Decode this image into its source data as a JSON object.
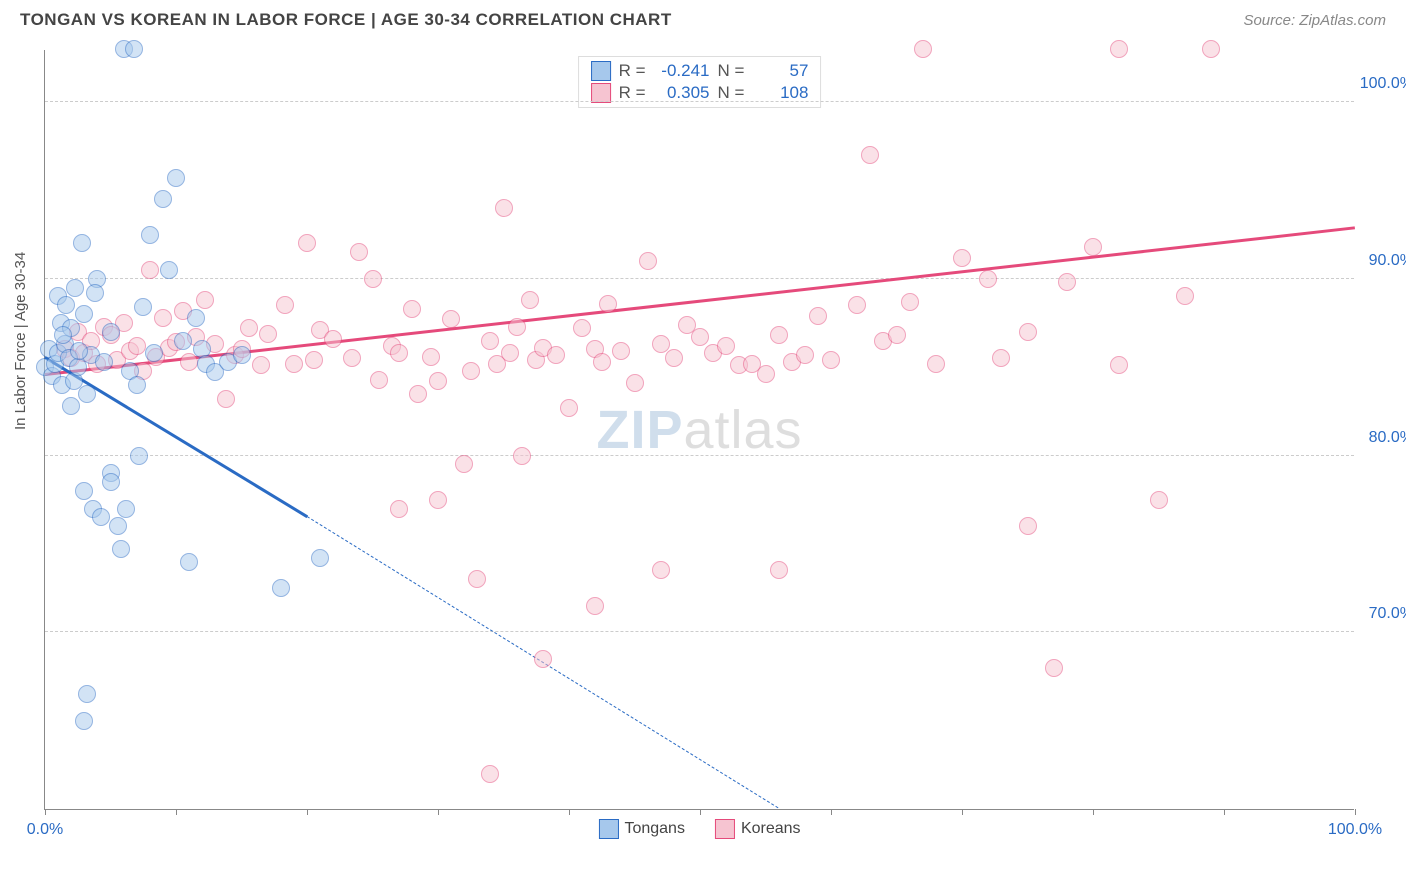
{
  "header": {
    "title": "TONGAN VS KOREAN IN LABOR FORCE | AGE 30-34 CORRELATION CHART",
    "source": "Source: ZipAtlas.com"
  },
  "chart": {
    "type": "scatter",
    "ylabel": "In Labor Force | Age 30-34",
    "xlim": [
      0,
      100
    ],
    "ylim": [
      60,
      103
    ],
    "xtick_positions": [
      0,
      10,
      20,
      30,
      40,
      50,
      60,
      70,
      80,
      90,
      100
    ],
    "xtick_labels": {
      "0": "0.0%",
      "100": "100.0%"
    },
    "ytick_positions": [
      70,
      80,
      90,
      100
    ],
    "ytick_labels": {
      "70": "70.0%",
      "80": "80.0%",
      "90": "90.0%",
      "100": "100.0%"
    },
    "grid_color": "#cccccc",
    "background_color": "#ffffff",
    "axis_color": "#888888",
    "tick_label_color": "#2a6bc4",
    "point_radius": 9,
    "point_opacity": 0.5,
    "series": {
      "tongans": {
        "label": "Tongans",
        "fill_color": "#a6c8ec",
        "stroke_color": "#2a6bc4",
        "R": "-0.241",
        "N": "57",
        "trend": {
          "x1": 0,
          "y1": 85.5,
          "x2": 20,
          "y2": 76.5,
          "x_extrapolate": 56,
          "y_extrapolate": 60,
          "color": "#2a6bc4"
        },
        "points": [
          [
            0,
            85
          ],
          [
            0.3,
            86
          ],
          [
            0.5,
            84.5
          ],
          [
            0.8,
            85.2
          ],
          [
            1,
            85.8
          ],
          [
            1,
            89
          ],
          [
            1.2,
            87.5
          ],
          [
            1.3,
            84
          ],
          [
            1.5,
            86.3
          ],
          [
            1.6,
            88.5
          ],
          [
            1.8,
            85.5
          ],
          [
            2,
            82.8
          ],
          [
            2,
            87.2
          ],
          [
            2.2,
            84.2
          ],
          [
            2.3,
            89.5
          ],
          [
            2.5,
            85
          ],
          [
            2.8,
            92
          ],
          [
            3,
            88
          ],
          [
            3,
            78
          ],
          [
            3.2,
            83.5
          ],
          [
            3.5,
            85.7
          ],
          [
            3.7,
            77
          ],
          [
            4,
            90
          ],
          [
            4.3,
            76.5
          ],
          [
            4.5,
            85.3
          ],
          [
            5,
            87
          ],
          [
            5,
            79
          ],
          [
            5.6,
            76
          ],
          [
            5.8,
            74.7
          ],
          [
            6,
            103
          ],
          [
            6.5,
            84.8
          ],
          [
            6.8,
            103
          ],
          [
            7,
            84
          ],
          [
            7.2,
            80
          ],
          [
            7.5,
            88.4
          ],
          [
            8,
            92.5
          ],
          [
            8.3,
            85.8
          ],
          [
            9,
            94.5
          ],
          [
            9.5,
            90.5
          ],
          [
            10,
            95.7
          ],
          [
            10.5,
            86.5
          ],
          [
            11,
            74
          ],
          [
            11.5,
            87.8
          ],
          [
            12,
            86
          ],
          [
            12.3,
            85.2
          ],
          [
            13,
            84.7
          ],
          [
            14,
            85.3
          ],
          [
            15,
            85.7
          ],
          [
            3.2,
            66.5
          ],
          [
            3,
            65
          ],
          [
            5,
            78.5
          ],
          [
            6.2,
            77
          ],
          [
            18,
            72.5
          ],
          [
            21,
            74.2
          ],
          [
            3.8,
            89.2
          ],
          [
            2.6,
            85.9
          ],
          [
            1.4,
            86.8
          ]
        ]
      },
      "koreans": {
        "label": "Koreans",
        "fill_color": "#f6c4d1",
        "stroke_color": "#e54a7b",
        "R": "0.305",
        "N": "108",
        "trend": {
          "x1": 0,
          "y1": 84.5,
          "x2": 100,
          "y2": 92.8,
          "color": "#e54a7b"
        },
        "points": [
          [
            1.5,
            86
          ],
          [
            2,
            85.5
          ],
          [
            2.5,
            87
          ],
          [
            3,
            85.8
          ],
          [
            3.5,
            86.5
          ],
          [
            4,
            85.2
          ],
          [
            4.5,
            87.3
          ],
          [
            5,
            86.8
          ],
          [
            5.5,
            85.4
          ],
          [
            6,
            87.5
          ],
          [
            6.5,
            85.9
          ],
          [
            7,
            86.2
          ],
          [
            7.5,
            84.8
          ],
          [
            8,
            90.5
          ],
          [
            8.5,
            85.6
          ],
          [
            9,
            87.8
          ],
          [
            9.5,
            86.1
          ],
          [
            10,
            86.4
          ],
          [
            10.5,
            88.2
          ],
          [
            11,
            85.3
          ],
          [
            11.5,
            86.7
          ],
          [
            12.2,
            88.8
          ],
          [
            13,
            86.3
          ],
          [
            13.8,
            83.2
          ],
          [
            14.5,
            85.7
          ],
          [
            15,
            86
          ],
          [
            15.6,
            87.2
          ],
          [
            16.5,
            85.1
          ],
          [
            17,
            86.9
          ],
          [
            18.3,
            88.5
          ],
          [
            19,
            85.2
          ],
          [
            20,
            92
          ],
          [
            20.5,
            85.4
          ],
          [
            21,
            87.1
          ],
          [
            22,
            86.6
          ],
          [
            23.4,
            85.5
          ],
          [
            24,
            91.5
          ],
          [
            25,
            90
          ],
          [
            25.5,
            84.3
          ],
          [
            26.5,
            86.2
          ],
          [
            27,
            85.8
          ],
          [
            28,
            88.3
          ],
          [
            28.5,
            83.5
          ],
          [
            29.5,
            85.6
          ],
          [
            30,
            84.2
          ],
          [
            31,
            87.7
          ],
          [
            32,
            79.5
          ],
          [
            32.5,
            84.8
          ],
          [
            34,
            86.5
          ],
          [
            34.5,
            85.2
          ],
          [
            35,
            94
          ],
          [
            36,
            87.3
          ],
          [
            36.4,
            80
          ],
          [
            37,
            88.8
          ],
          [
            37.5,
            85.4
          ],
          [
            38,
            86.1
          ],
          [
            39,
            85.7
          ],
          [
            40,
            82.7
          ],
          [
            41,
            87.2
          ],
          [
            42,
            86
          ],
          [
            42.5,
            85.3
          ],
          [
            43,
            88.6
          ],
          [
            44,
            85.9
          ],
          [
            45,
            84.1
          ],
          [
            46,
            91
          ],
          [
            47,
            86.3
          ],
          [
            48,
            85.5
          ],
          [
            49,
            87.4
          ],
          [
            50,
            86.7
          ],
          [
            51,
            85.8
          ],
          [
            52,
            86.2
          ],
          [
            53,
            85.1
          ],
          [
            54,
            85.2
          ],
          [
            55,
            84.6
          ],
          [
            56,
            86.8
          ],
          [
            57,
            85.3
          ],
          [
            58,
            85.7
          ],
          [
            59,
            87.9
          ],
          [
            60,
            85.4
          ],
          [
            62,
            88.5
          ],
          [
            63,
            97
          ],
          [
            64,
            86.5
          ],
          [
            66,
            88.7
          ],
          [
            67,
            103
          ],
          [
            70,
            91.2
          ],
          [
            72,
            90
          ],
          [
            75,
            76
          ],
          [
            77,
            68
          ],
          [
            78,
            89.8
          ],
          [
            80,
            91.8
          ],
          [
            82,
            85.1
          ],
          [
            82,
            103
          ],
          [
            85,
            77.5
          ],
          [
            34,
            62
          ],
          [
            38,
            68.5
          ],
          [
            27,
            77
          ],
          [
            30,
            77.5
          ],
          [
            33,
            73
          ],
          [
            42,
            71.5
          ],
          [
            47,
            73.5
          ],
          [
            56,
            73.5
          ],
          [
            89,
            103
          ],
          [
            87,
            89
          ],
          [
            75,
            87
          ],
          [
            73,
            85.5
          ],
          [
            68,
            85.2
          ],
          [
            65,
            86.8
          ],
          [
            35.5,
            85.8
          ]
        ]
      }
    },
    "legend_top": {
      "rows": [
        {
          "swatch": "tongans",
          "r_label": "R =",
          "r_val": "-0.241",
          "n_label": "N =",
          "n_val": "57"
        },
        {
          "swatch": "koreans",
          "r_label": "R =",
          "r_val": "0.305",
          "n_label": "N =",
          "n_val": "108"
        }
      ]
    },
    "legend_bottom": [
      {
        "swatch": "tongans",
        "label": "Tongans"
      },
      {
        "swatch": "koreans",
        "label": "Koreans"
      }
    ],
    "watermark": {
      "text1": "ZIP",
      "text2": "atlas"
    }
  }
}
